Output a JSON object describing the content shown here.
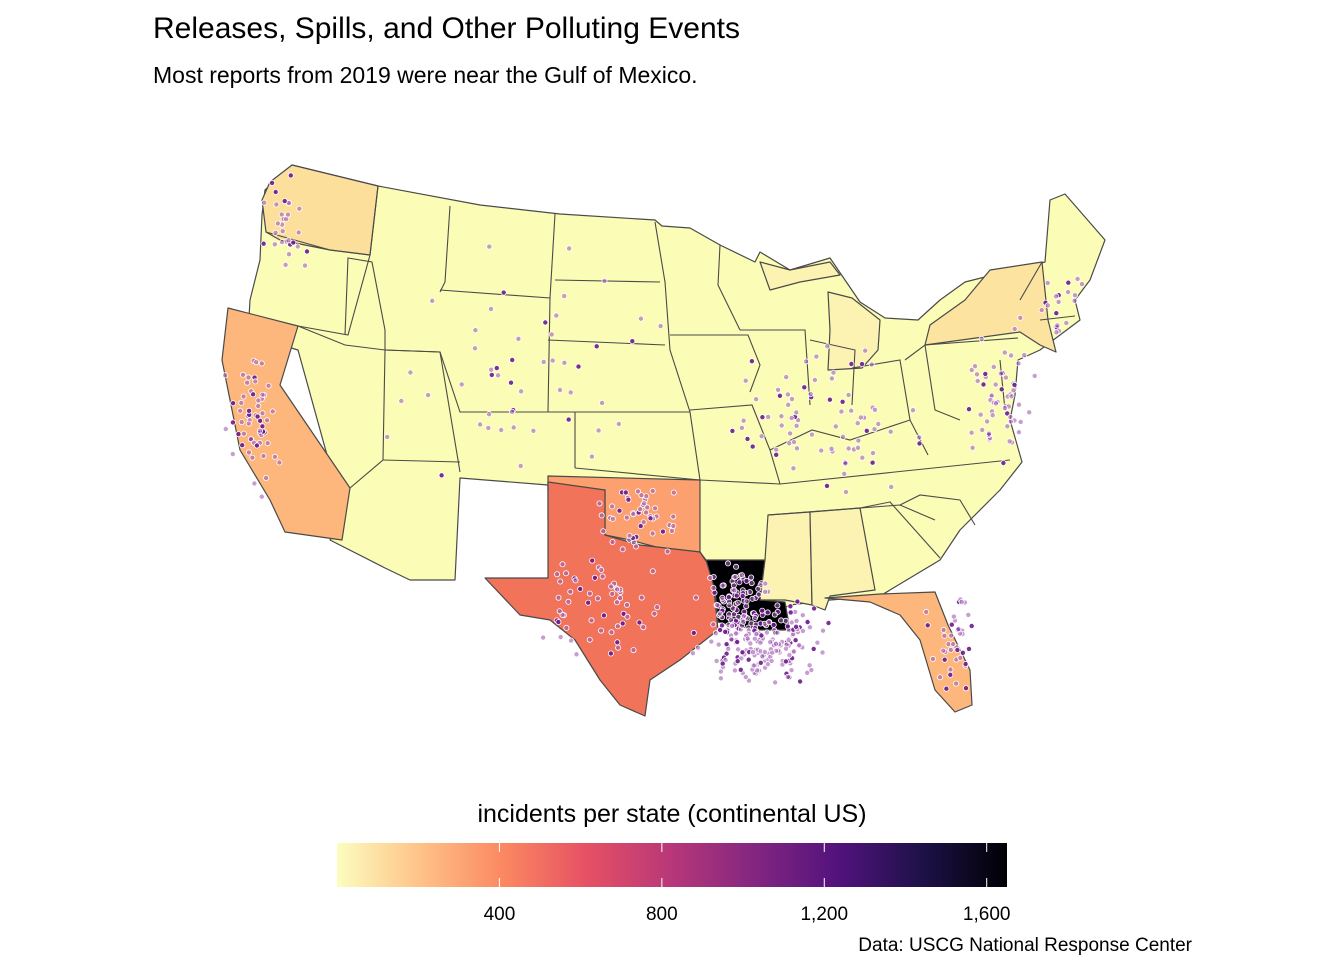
{
  "title": "Releases, Spills, and Other Polluting Events",
  "subtitle": "Most reports from 2019 were near the Gulf of Mexico.",
  "source": "Data: USCG National Response Center",
  "legend": {
    "title": "incidents per state (continental US)",
    "domain": [
      0,
      1650
    ],
    "ticks": [
      {
        "value": 400,
        "label": "400"
      },
      {
        "value": 800,
        "label": "800"
      },
      {
        "value": 1200,
        "label": "1,200"
      },
      {
        "value": 1600,
        "label": "1,600"
      }
    ],
    "palette": "magma (reversed)",
    "gradient_stops": [
      "#fcfdbf",
      "#fec287",
      "#fb8761",
      "#e55064",
      "#b73779",
      "#822681",
      "#51127c",
      "#1d1147",
      "#000004"
    ]
  },
  "state_fills": {
    "louisiana": "#000004",
    "texas": "#f1735a",
    "oklahoma": "#fba06e",
    "california": "#fdb67c",
    "florida": "#fdb67c",
    "washington": "#fddf9c",
    "new-york": "#fde3a0",
    "mississippi": "#fcf3b3",
    "alabama": "#fcf3b3",
    "michigan": "#fcf3b3",
    "other": "#fbfcb6"
  },
  "point_color": "#a25db3"
}
